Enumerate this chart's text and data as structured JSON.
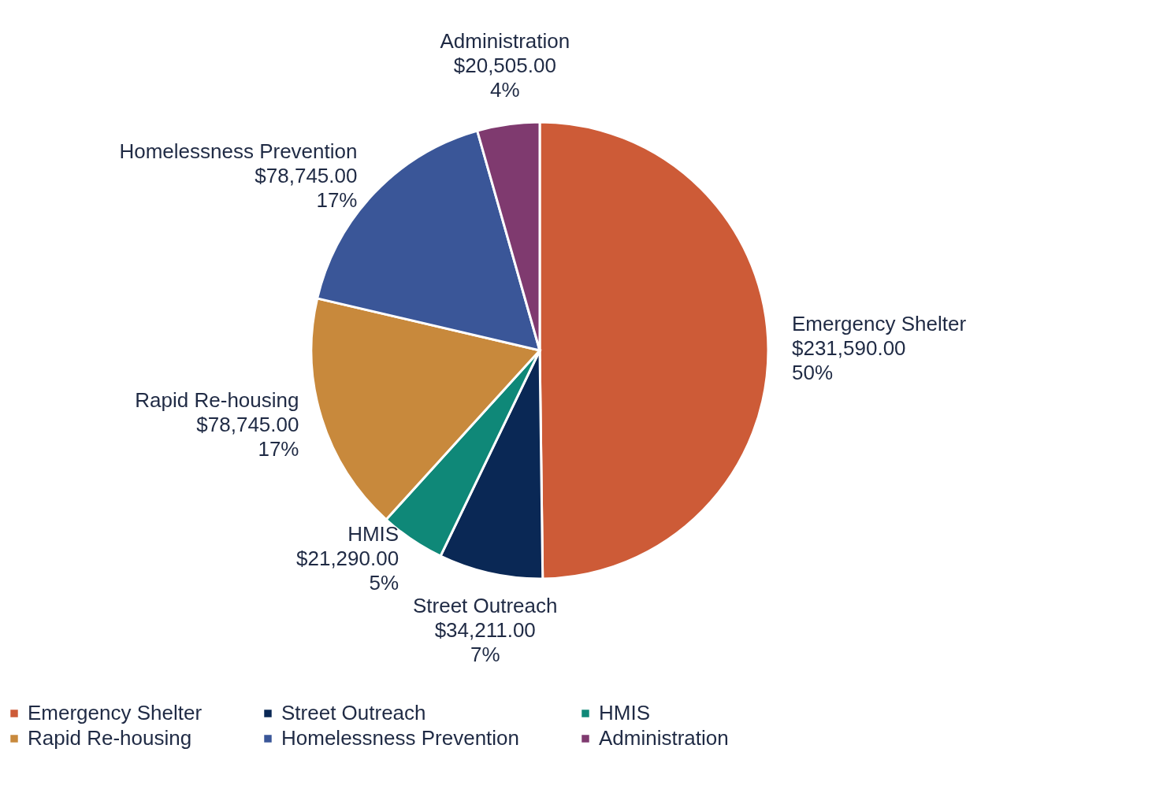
{
  "chart_data": {
    "type": "pie",
    "categories": [
      "Emergency Shelter",
      "Street Outreach",
      "HMIS",
      "Rapid Re-housing",
      "Homelessness Prevention",
      "Administration"
    ],
    "values": [
      231590,
      34211,
      21290,
      78745,
      78745,
      20505
    ],
    "colors": [
      "#cd5b37",
      "#0a2855",
      "#0f8878",
      "#c8893c",
      "#3a5698",
      "#7f3a6f"
    ],
    "value_labels": [
      "$231,590.00\n50%",
      "$34,211.00\n7%",
      "$21,290.00\n5%",
      "$78,745.00\n17%",
      "$78,745.00\n17%",
      "$20,505.00\n4%"
    ],
    "legend": "bottom"
  }
}
